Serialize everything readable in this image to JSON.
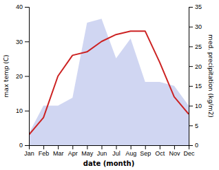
{
  "chart_data": {
    "type": "line",
    "categories": [
      "Jan",
      "Feb",
      "Mar",
      "Apr",
      "May",
      "Jun",
      "Jul",
      "Aug",
      "Sep",
      "Oct",
      "Nov",
      "Dec"
    ],
    "xlabel": "date (month)",
    "ylabel": "max temp (C)",
    "y2label": "med. precipitation (kg/m2)",
    "series": [
      {
        "type": "area",
        "axis": "y2",
        "color": "#aab4e8",
        "values": [
          3,
          10,
          10,
          12,
          31,
          32,
          22,
          27,
          16,
          16,
          15,
          10
        ]
      },
      {
        "type": "line",
        "color": "#cc2222",
        "values": [
          3,
          8,
          20,
          26,
          27,
          30,
          32,
          33,
          33,
          24,
          14,
          9
        ]
      }
    ],
    "ylim": [
      0,
      40
    ],
    "yticks": [
      0,
      10,
      20,
      30,
      40
    ],
    "y2lim": [
      0,
      35
    ],
    "y2ticks": [
      0,
      5,
      10,
      15,
      20,
      25,
      30,
      35
    ]
  }
}
